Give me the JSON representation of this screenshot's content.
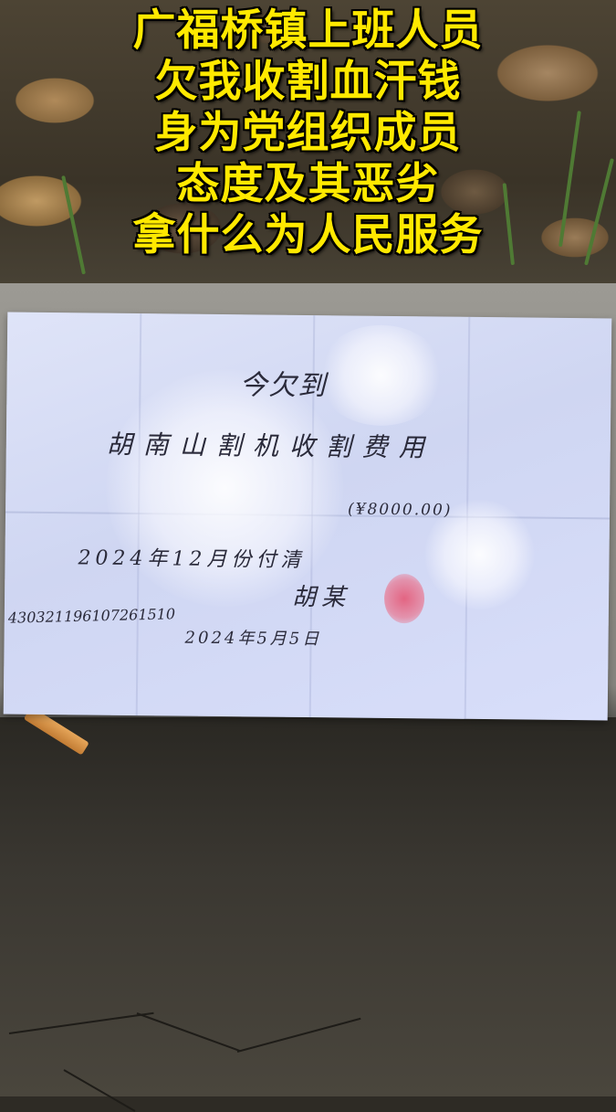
{
  "caption": {
    "lines": [
      "广福桥镇上班人员",
      "欠我收割血汗钱",
      "身为党组织成员",
      "态度及其恶劣",
      "拿什么为人民服务"
    ]
  },
  "note": {
    "heading": "今欠到",
    "body": "胡南山割机收割费用",
    "amount": "(¥8000.00)",
    "due": "2024年12月份付清",
    "signer": "胡某  ",
    "id_number": "430321196107261510",
    "date": "2024年5月5日"
  },
  "colors": {
    "caption_text": "#ffe900",
    "caption_outline": "#000000",
    "paper": "#d8defa",
    "seal": "#e6506e"
  }
}
